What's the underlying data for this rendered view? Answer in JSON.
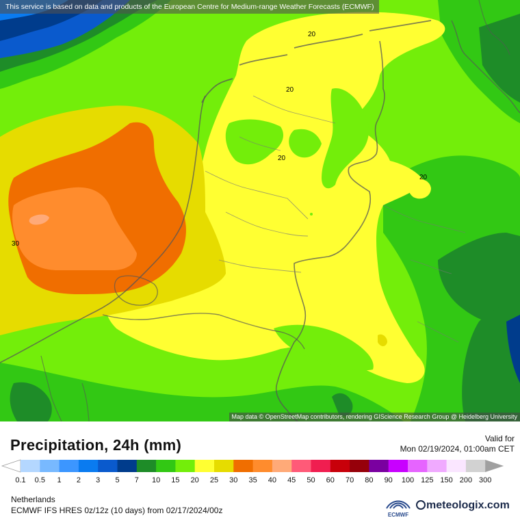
{
  "header": {
    "attribution": "This service is based on data and products of the European Centre for Medium-range Weather Forecasts (ECMWF)"
  },
  "map": {
    "attribution": "Map data © OpenStreetMap contributors, rendering GIScience Research Group @ Heidelberg University",
    "contour_labels": [
      "20",
      "20",
      "20",
      "20",
      "30"
    ]
  },
  "legend": {
    "title": "Precipitation, 24h (mm)",
    "valid_label": "Valid for",
    "valid_value": "Mon 02/19/2024, 01:00am CET",
    "scale": [
      {
        "label": "0.1",
        "color": "#ffffff"
      },
      {
        "label": "0.5",
        "color": "#b4d7ff"
      },
      {
        "label": "1",
        "color": "#78b9ff"
      },
      {
        "label": "2",
        "color": "#3c96ff"
      },
      {
        "label": "3",
        "color": "#0a7bf0"
      },
      {
        "label": "5",
        "color": "#0a5acd"
      },
      {
        "label": "7",
        "color": "#003c8c"
      },
      {
        "label": "10",
        "color": "#1e8c28"
      },
      {
        "label": "15",
        "color": "#32c814"
      },
      {
        "label": "20",
        "color": "#73ee0a"
      },
      {
        "label": "25",
        "color": "#ffff32"
      },
      {
        "label": "30",
        "color": "#e6dc00"
      },
      {
        "label": "35",
        "color": "#f06e00"
      },
      {
        "label": "40",
        "color": "#ff8c2d"
      },
      {
        "label": "45",
        "color": "#ffaa78"
      },
      {
        "label": "50",
        "color": "#ff5a78"
      },
      {
        "label": "60",
        "color": "#f01e50"
      },
      {
        "label": "70",
        "color": "#c8000a"
      },
      {
        "label": "80",
        "color": "#96000a"
      },
      {
        "label": "90",
        "color": "#7a00a0"
      },
      {
        "label": "100",
        "color": "#c800ff"
      },
      {
        "label": "125",
        "color": "#e664ff"
      },
      {
        "label": "150",
        "color": "#f0aaff"
      },
      {
        "label": "200",
        "color": "#fae6ff"
      },
      {
        "label": "300",
        "color": "#d2d2d2"
      }
    ],
    "region": "Netherlands",
    "model": "ECMWF IFS HRES 0z/12z (10 days) from  02/17/2024/00z",
    "ecmwf_logo": "ECMWF",
    "brand": "meteologix.com"
  }
}
